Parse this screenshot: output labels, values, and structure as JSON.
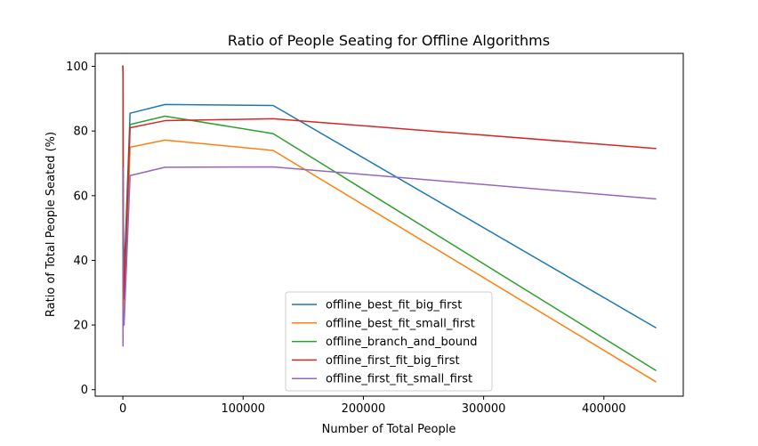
{
  "chart_data": {
    "type": "line",
    "title": "Ratio of People Seating for Offline Algorithms",
    "xlabel": "Number of Total People",
    "ylabel": "Ratio of Total People Seated (%)",
    "xlim": [
      -23000,
      466000
    ],
    "ylim": [
      -2,
      104
    ],
    "xticks": [
      0,
      100000,
      200000,
      300000,
      400000
    ],
    "xtick_labels": [
      "0",
      "100000",
      "200000",
      "300000",
      "400000"
    ],
    "yticks": [
      0,
      20,
      40,
      60,
      80,
      100
    ],
    "ytick_labels": [
      "0",
      "20",
      "40",
      "60",
      "80",
      "100"
    ],
    "grid": false,
    "legend_position": "lower-center",
    "series": [
      {
        "name": "offline_best_fit_big_first",
        "color": "#1f77b4",
        "x": [
          0,
          100,
          300,
          1000,
          6000,
          35000,
          125000,
          443000
        ],
        "y": [
          100,
          99,
          55,
          35,
          85.5,
          88.2,
          87.9,
          19.2
        ]
      },
      {
        "name": "offline_best_fit_small_first",
        "color": "#ff7f0e",
        "x": [
          0,
          100,
          300,
          1000,
          6000,
          35000,
          125000,
          443000
        ],
        "y": [
          100,
          98,
          45,
          25,
          75,
          77.2,
          74,
          2.5
        ]
      },
      {
        "name": "offline_branch_and_bound",
        "color": "#2ca02c",
        "x": [
          0,
          100,
          300,
          1000,
          6000,
          35000,
          125000,
          443000
        ],
        "y": [
          100,
          99,
          50,
          30,
          82,
          84.6,
          79.2,
          6
        ]
      },
      {
        "name": "offline_first_fit_big_first",
        "color": "#d62728",
        "x": [
          0,
          100,
          300,
          1000,
          6000,
          35000,
          125000,
          443000
        ],
        "y": [
          100,
          99.5,
          45,
          28,
          81,
          83.2,
          83.8,
          74.6
        ]
      },
      {
        "name": "offline_first_fit_small_first",
        "color": "#9467bd",
        "x": [
          0,
          100,
          300,
          1000,
          6000,
          35000,
          125000,
          443000
        ],
        "y": [
          68.5,
          13.5,
          25,
          20,
          66.2,
          68.8,
          68.9,
          59
        ]
      }
    ]
  }
}
